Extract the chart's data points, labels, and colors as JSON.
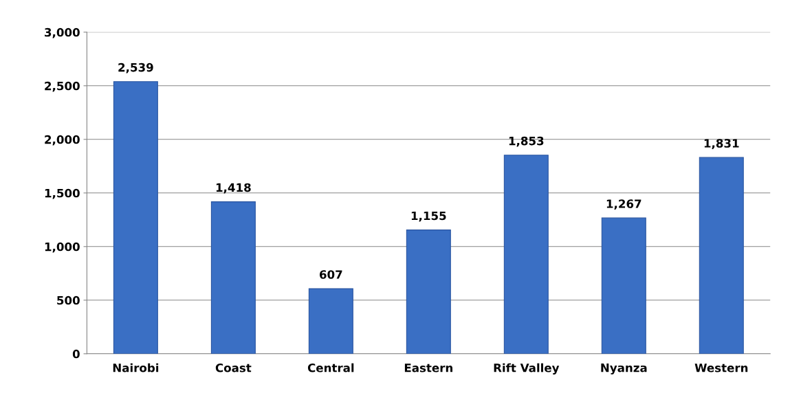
{
  "chart_data": {
    "type": "bar",
    "categories": [
      "Nairobi",
      "Coast",
      "Central",
      "Eastern",
      "Rift Valley",
      "Nyanza",
      "Western"
    ],
    "values": [
      2539,
      1418,
      607,
      1155,
      1853,
      1267,
      1831
    ],
    "value_labels": [
      "2,539",
      "1,418",
      "607",
      "1,155",
      "1,853",
      "1,267",
      "1,831"
    ],
    "color": "#3a6fc4",
    "ylim": [
      0,
      3000
    ],
    "yticks": [
      0,
      {
        "value": 500,
        "label": "500"
      },
      {
        "value": 1000,
        "label": "1,000"
      },
      {
        "value": 1500,
        "label": "1,500"
      },
      {
        "value": 2000,
        "label": "2,000"
      },
      {
        "value": 2500,
        "label": "2,500"
      },
      {
        "value": 3000,
        "label": "3,000"
      }
    ],
    "grid": "y",
    "legend": false
  }
}
